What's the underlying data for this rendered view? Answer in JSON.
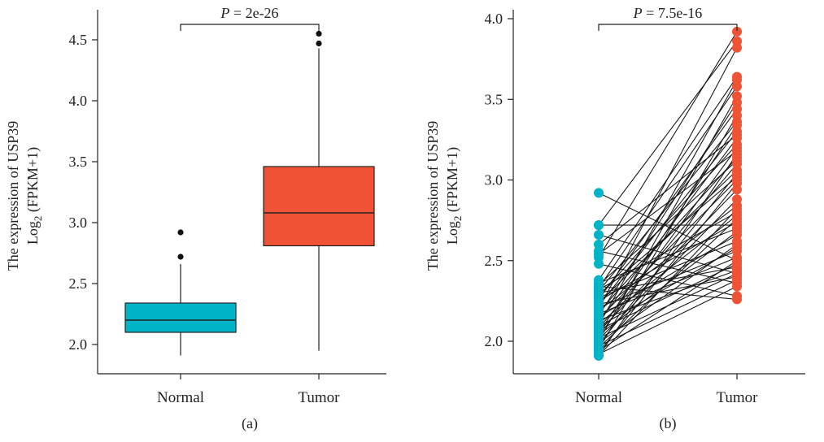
{
  "chart_data": [
    {
      "type": "box",
      "caption": "(a)",
      "ylabel_line1": "The expression of USP39",
      "ylabel_line2_prefix": "Log",
      "ylabel_line2_sub": "2",
      "ylabel_line2_suffix": " (FPKM+1)",
      "ylim": [
        1.8,
        4.75
      ],
      "yticks": [
        2.0,
        2.5,
        3.0,
        3.5,
        4.0,
        4.5
      ],
      "ytick_labels": [
        "2.0",
        "2.5",
        "3.0",
        "3.5",
        "4.0",
        "4.5"
      ],
      "categories": [
        "Normal",
        "Tumor"
      ],
      "p_label_italic": "P",
      "p_label_rest": " = 2e-26",
      "colors": {
        "Normal": "#00b3c6",
        "Tumor": "#f05236"
      },
      "boxes": [
        {
          "category": "Normal",
          "whisker_low": 1.91,
          "q1": 2.1,
          "median": 2.2,
          "q3": 2.34,
          "whisker_high": 2.66,
          "outliers": [
            2.72,
            2.92
          ]
        },
        {
          "category": "Tumor",
          "whisker_low": 1.95,
          "q1": 2.81,
          "median": 3.08,
          "q3": 3.46,
          "whisker_high": 4.43,
          "outliers": [
            4.47,
            4.55
          ]
        }
      ]
    },
    {
      "type": "paired-scatter",
      "caption": "(b)",
      "ylabel_line1": "The expression of USP39",
      "ylabel_line2_prefix": "Log",
      "ylabel_line2_sub": "2",
      "ylabel_line2_suffix": " (FPKM+1)",
      "ylim": [
        1.8,
        4.05
      ],
      "yticks": [
        2.0,
        2.5,
        3.0,
        3.5,
        4.0
      ],
      "ytick_labels": [
        "2.0",
        "2.5",
        "3.0",
        "3.5",
        "4.0"
      ],
      "categories": [
        "Normal",
        "Tumor"
      ],
      "p_label_italic": "P",
      "p_label_rest": " = 7.5e-16",
      "colors": {
        "Normal": "#00b3c6",
        "Tumor": "#f05236"
      },
      "pairs": [
        [
          2.92,
          2.5
        ],
        [
          2.72,
          2.72
        ],
        [
          2.72,
          3.86
        ],
        [
          2.66,
          2.42
        ],
        [
          2.6,
          3.28
        ],
        [
          2.56,
          2.36
        ],
        [
          2.54,
          3.18
        ],
        [
          2.52,
          3.92
        ],
        [
          2.48,
          2.28
        ],
        [
          2.38,
          3.64
        ],
        [
          2.36,
          2.7
        ],
        [
          2.35,
          3.12
        ],
        [
          2.34,
          2.26
        ],
        [
          2.33,
          3.58
        ],
        [
          2.32,
          2.8
        ],
        [
          2.31,
          3.36
        ],
        [
          2.3,
          2.46
        ],
        [
          2.29,
          3.02
        ],
        [
          2.28,
          3.22
        ],
        [
          2.27,
          2.62
        ],
        [
          2.26,
          3.44
        ],
        [
          2.25,
          2.74
        ],
        [
          2.24,
          3.06
        ],
        [
          2.23,
          2.4
        ],
        [
          2.22,
          3.3
        ],
        [
          2.21,
          2.56
        ],
        [
          2.2,
          3.82
        ],
        [
          2.19,
          2.84
        ],
        [
          2.18,
          3.14
        ],
        [
          2.17,
          2.52
        ],
        [
          2.16,
          3.48
        ],
        [
          2.15,
          2.66
        ],
        [
          2.14,
          3.0
        ],
        [
          2.13,
          2.44
        ],
        [
          2.12,
          3.26
        ],
        [
          2.11,
          2.78
        ],
        [
          2.1,
          3.62
        ],
        [
          2.09,
          2.58
        ],
        [
          2.08,
          3.1
        ],
        [
          2.07,
          2.48
        ],
        [
          2.06,
          2.94
        ],
        [
          2.05,
          3.34
        ],
        [
          2.04,
          2.68
        ],
        [
          2.03,
          3.2
        ],
        [
          2.02,
          2.42
        ],
        [
          2.01,
          2.88
        ],
        [
          2.0,
          3.52
        ],
        [
          1.99,
          2.6
        ],
        [
          1.98,
          3.04
        ],
        [
          1.97,
          2.38
        ],
        [
          1.96,
          2.76
        ],
        [
          1.95,
          3.4
        ],
        [
          1.94,
          2.5
        ],
        [
          1.93,
          2.98
        ],
        [
          1.92,
          2.34
        ],
        [
          1.91,
          3.16
        ],
        [
          1.91,
          2.82
        ]
      ]
    }
  ]
}
